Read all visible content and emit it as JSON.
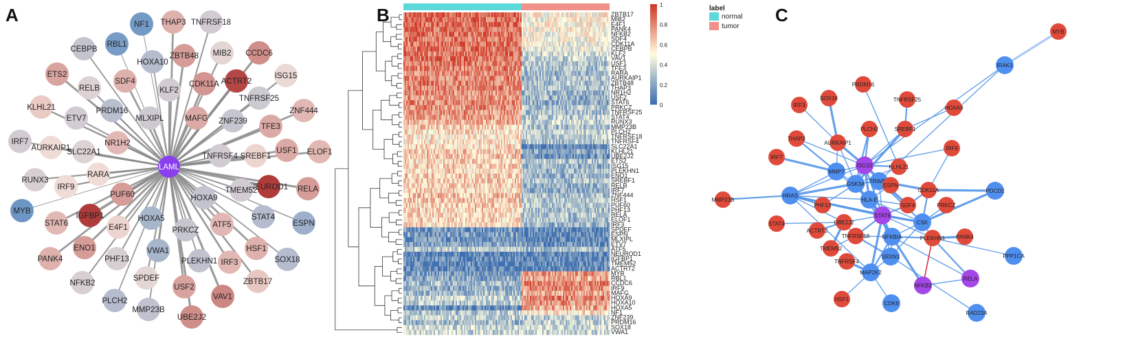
{
  "panels": {
    "a": "A",
    "b": "B",
    "c": "C"
  },
  "colors": {
    "network_a_edge": "#8a8a8a",
    "network_c_edge_blue": "#4a8fe6",
    "network_c_edge_red": "#d83040",
    "node_red": "#e04a3b",
    "node_blue": "#4f8ff0",
    "node_purple": "#a347e6",
    "hub_purple": "#8a3ef0",
    "heat_low": "#3f6fb0",
    "heat_mid": "#fffde0",
    "heat_high": "#d03a2a",
    "normal": "#5dd9dc",
    "tumor": "#f0918a"
  },
  "network_a": {
    "hub": "LAML",
    "scale_low": "#5b8cc2",
    "scale_mid": "#f0dcd6",
    "scale_high": "#a82a2a",
    "nodes": [
      {
        "name": "NF1",
        "v": 0.08
      },
      {
        "name": "THAP3",
        "v": 0.62
      },
      {
        "name": "TNFRSF18",
        "v": 0.4
      },
      {
        "name": "RBL1",
        "v": 0.1
      },
      {
        "name": "CEBPB",
        "v": 0.35
      },
      {
        "name": "HOXA10",
        "v": 0.3
      },
      {
        "name": "ZBTB48",
        "v": 0.68
      },
      {
        "name": "MIB2",
        "v": 0.46
      },
      {
        "name": "CCDC6",
        "v": 0.72
      },
      {
        "name": "SDF4",
        "v": 0.62
      },
      {
        "name": "CDK11A",
        "v": 0.7
      },
      {
        "name": "ACTRT2",
        "v": 0.92
      },
      {
        "name": "ISG15",
        "v": 0.48
      },
      {
        "name": "ETS2",
        "v": 0.66
      },
      {
        "name": "RELB",
        "v": 0.44
      },
      {
        "name": "KLF2",
        "v": 0.4
      },
      {
        "name": "TNFRSF25",
        "v": 0.38
      },
      {
        "name": "KLHL21",
        "v": 0.55
      },
      {
        "name": "PRDM16",
        "v": 0.32
      },
      {
        "name": "MLXIPL",
        "v": 0.38
      },
      {
        "name": "MAFG",
        "v": 0.64
      },
      {
        "name": "ZNF444",
        "v": 0.6
      },
      {
        "name": "ETV7",
        "v": 0.4
      },
      {
        "name": "ZNF239",
        "v": 0.36
      },
      {
        "name": "TFE3",
        "v": 0.64
      },
      {
        "name": "IRF7",
        "v": 0.4
      },
      {
        "name": "AURKAIP1",
        "v": 0.5
      },
      {
        "name": "NR1H2",
        "v": 0.6
      },
      {
        "name": "SLC22A1",
        "v": 0.44
      },
      {
        "name": "USF1",
        "v": 0.64
      },
      {
        "name": "ELOF1",
        "v": 0.6
      },
      {
        "name": "TNFRSF4",
        "v": 0.4
      },
      {
        "name": "SREBF1",
        "v": 0.52
      },
      {
        "name": "RUNX3",
        "v": 0.42
      },
      {
        "name": "RARA",
        "v": 0.5
      },
      {
        "name": "NEUROD1",
        "v": 0.95
      },
      {
        "name": "RELA",
        "v": 0.68
      },
      {
        "name": "IRF9",
        "v": 0.5
      },
      {
        "name": "TMEM52",
        "v": 0.4
      },
      {
        "name": "HOXA9",
        "v": 0.35
      },
      {
        "name": "PUF60",
        "v": 0.68
      },
      {
        "name": "MYB",
        "v": 0.06
      },
      {
        "name": "IGFBP1",
        "v": 0.95
      },
      {
        "name": "STAT6",
        "v": 0.6
      },
      {
        "name": "STAT4",
        "v": 0.3
      },
      {
        "name": "ESPN",
        "v": 0.22
      },
      {
        "name": "HOXA5",
        "v": 0.26
      },
      {
        "name": "ATF5",
        "v": 0.6
      },
      {
        "name": "E4F1",
        "v": 0.52
      },
      {
        "name": "PRKCZ",
        "v": 0.36
      },
      {
        "name": "ENO1",
        "v": 0.68
      },
      {
        "name": "VWA1",
        "v": 0.26
      },
      {
        "name": "HSF1",
        "v": 0.62
      },
      {
        "name": "SOX18",
        "v": 0.3
      },
      {
        "name": "PANK4",
        "v": 0.62
      },
      {
        "name": "PHF13",
        "v": 0.42
      },
      {
        "name": "PLEKHN1",
        "v": 0.34
      },
      {
        "name": "IRF3",
        "v": 0.6
      },
      {
        "name": "ZBTB17",
        "v": 0.56
      },
      {
        "name": "NFKB2",
        "v": 0.42
      },
      {
        "name": "SPDEF",
        "v": 0.46
      },
      {
        "name": "USF2",
        "v": 0.66
      },
      {
        "name": "VAV1",
        "v": 0.74
      },
      {
        "name": "PLCH2",
        "v": 0.3
      },
      {
        "name": "MMP23B",
        "v": 0.34
      },
      {
        "name": "UBE2J2",
        "v": 0.72
      }
    ]
  },
  "heatmap": {
    "legend_title": "label",
    "groups": [
      "normal",
      "tumor"
    ],
    "colorbar_ticks": [
      "1",
      "0.8",
      "0.6",
      "0.4",
      "0.2",
      "0"
    ],
    "rows": [
      "ZBTB17",
      "MIB2",
      "E4F1",
      "PANK4",
      "NFKB2",
      "SDF4",
      "CDK11A",
      "CEBPB",
      "KLF2",
      "VAV1",
      "USF1",
      "TFE3",
      "RARA",
      "AURKAIP1",
      "ZBTB48",
      "THAP3",
      "NR1H2",
      "USF2",
      "STAT6",
      "PRKCZ",
      "TNFRSF25",
      "STAT4",
      "RUNX3",
      "MMP23B",
      "PLCH2",
      "TNFRSF18",
      "TNFRSF4",
      "SLC22A1",
      "KLHL21",
      "UBE2J2",
      "ETS2",
      "ISG15",
      "PLEKHN1",
      "ENO1",
      "SREBF1",
      "RELB",
      "IRF7",
      "ZNF444",
      "HSF1",
      "PUF60",
      "PHF13",
      "RELA",
      "ELOF1",
      "IRF3",
      "SPDEF",
      "ESPN",
      "MLXIPL",
      "ETV7",
      "ATF5",
      "NEUROD1",
      "IGFBP1",
      "TMEM52",
      "ACTRT2",
      "MYB",
      "RBL1",
      "CCDC6",
      "IRF9",
      "MAFG",
      "HOXA9",
      "HOXA10",
      "HOXA5",
      "NF1",
      "ZNF239",
      "PRDM16",
      "SOX18",
      "VWA1"
    ],
    "normal_levels": [
      0.88,
      0.86,
      0.87,
      0.85,
      0.86,
      0.84,
      0.86,
      0.85,
      0.84,
      0.86,
      0.82,
      0.8,
      0.78,
      0.8,
      0.82,
      0.8,
      0.78,
      0.76,
      0.8,
      0.78,
      0.77,
      0.76,
      0.7,
      0.62,
      0.58,
      0.55,
      0.55,
      0.6,
      0.62,
      0.64,
      0.6,
      0.62,
      0.6,
      0.64,
      0.62,
      0.6,
      0.6,
      0.66,
      0.64,
      0.62,
      0.62,
      0.6,
      0.62,
      0.58,
      0.14,
      0.16,
      0.14,
      0.2,
      0.32,
      0.06,
      0.1,
      0.08,
      0.08,
      0.18,
      0.2,
      0.28,
      0.22,
      0.26,
      0.36,
      0.32,
      0.08,
      0.3,
      0.34,
      0.26,
      0.36,
      0.36
    ],
    "tumor_levels": [
      0.52,
      0.5,
      0.52,
      0.5,
      0.48,
      0.5,
      0.46,
      0.44,
      0.4,
      0.34,
      0.28,
      0.3,
      0.26,
      0.28,
      0.3,
      0.28,
      0.26,
      0.24,
      0.22,
      0.3,
      0.28,
      0.32,
      0.34,
      0.28,
      0.36,
      0.34,
      0.3,
      0.06,
      0.2,
      0.12,
      0.3,
      0.24,
      0.26,
      0.24,
      0.28,
      0.22,
      0.22,
      0.3,
      0.32,
      0.3,
      0.28,
      0.3,
      0.28,
      0.24,
      0.1,
      0.1,
      0.08,
      0.12,
      0.28,
      0.06,
      0.08,
      0.1,
      0.08,
      0.76,
      0.72,
      0.82,
      0.78,
      0.7,
      0.8,
      0.78,
      0.72,
      0.56,
      0.32,
      0.34,
      0.38,
      0.36
    ]
  },
  "network_c": {
    "nodes": [
      {
        "name": "MYB",
        "t": "red"
      },
      {
        "name": "IRAK1",
        "t": "blue"
      },
      {
        "name": "PRDM16",
        "t": "red"
      },
      {
        "name": "IRF3",
        "t": "red"
      },
      {
        "name": "SOX18",
        "t": "red"
      },
      {
        "name": "TNFRSF25",
        "t": "red"
      },
      {
        "name": "HOXA9",
        "t": "red"
      },
      {
        "name": "THAP3",
        "t": "red"
      },
      {
        "name": "AURKAIP1",
        "t": "red"
      },
      {
        "name": "PLCH2",
        "t": "red"
      },
      {
        "name": "SREBF1",
        "t": "red"
      },
      {
        "name": "IRF7",
        "t": "red"
      },
      {
        "name": "ISG15",
        "t": "purple"
      },
      {
        "name": "IRF9",
        "t": "red"
      },
      {
        "name": "MMP7",
        "t": "blue"
      },
      {
        "name": "KLHL21",
        "t": "red"
      },
      {
        "name": "GSK3A",
        "t": "blue"
      },
      {
        "name": "TRIM55",
        "t": "blue"
      },
      {
        "name": "ESPN",
        "t": "red"
      },
      {
        "name": "CDK11A",
        "t": "red"
      },
      {
        "name": "MMP23B",
        "t": "red"
      },
      {
        "name": "HRAS",
        "t": "blue"
      },
      {
        "name": "HLA-E",
        "t": "blue"
      },
      {
        "name": "SDF4",
        "t": "red"
      },
      {
        "name": "PDCD1",
        "t": "blue"
      },
      {
        "name": "PHF13",
        "t": "red"
      },
      {
        "name": "PRKCZ",
        "t": "red"
      },
      {
        "name": "STAT6",
        "t": "purple"
      },
      {
        "name": "STAT4",
        "t": "red"
      },
      {
        "name": "UBE2J2",
        "t": "red"
      },
      {
        "name": "CSK",
        "t": "blue"
      },
      {
        "name": "ACTRT2",
        "t": "red"
      },
      {
        "name": "PANK4",
        "t": "red"
      },
      {
        "name": "TNFRSF18",
        "t": "red"
      },
      {
        "name": "NFKBIA",
        "t": "blue"
      },
      {
        "name": "PLEKHN1",
        "t": "red"
      },
      {
        "name": "TMEM52",
        "t": "red"
      },
      {
        "name": "SRXN1",
        "t": "blue"
      },
      {
        "name": "PPP1CA",
        "t": "blue"
      },
      {
        "name": "TNFRSF4",
        "t": "red"
      },
      {
        "name": "MAP2K2",
        "t": "blue"
      },
      {
        "name": "RELA",
        "t": "purple"
      },
      {
        "name": "NFKB2",
        "t": "purple"
      },
      {
        "name": "HSF1",
        "t": "red"
      },
      {
        "name": "CDK6",
        "t": "blue"
      },
      {
        "name": "RAD23A",
        "t": "blue"
      }
    ],
    "edges": [
      [
        "MYB",
        "IRAK1"
      ],
      [
        "IRAK1",
        "ISG15"
      ],
      [
        "IRAK1",
        "TRIM55"
      ],
      [
        "ISG15",
        "GSK3A"
      ],
      [
        "ISG15",
        "MMP7"
      ],
      [
        "ISG15",
        "HLA-E"
      ],
      [
        "ISG15",
        "KLHL21"
      ],
      [
        "ISG15",
        "SREBF1"
      ],
      [
        "ISG15",
        "IRF9"
      ],
      [
        "ISG15",
        "PLCH2"
      ],
      [
        "ISG15",
        "AURKAIP1"
      ],
      [
        "ISG15",
        "THAP3"
      ],
      [
        "ISG15",
        "STAT6"
      ],
      [
        "ISG15",
        "TRIM55"
      ],
      [
        "ISG15",
        "HRAS"
      ],
      [
        "ISG15",
        "SDF4"
      ],
      [
        "GSK3A",
        "MMP7"
      ],
      [
        "GSK3A",
        "HLA-E"
      ],
      [
        "GSK3A",
        "TRIM55"
      ],
      [
        "GSK3A",
        "KLHL21"
      ],
      [
        "GSK3A",
        "SREBF1"
      ],
      [
        "GSK3A",
        "PLCH2"
      ],
      [
        "GSK3A",
        "STAT6"
      ],
      [
        "GSK3A",
        "PHF13"
      ],
      [
        "GSK3A",
        "NFKBIA"
      ],
      [
        "GSK3A",
        "HRAS"
      ],
      [
        "GSK3A",
        "AURKAIP1"
      ],
      [
        "HRAS",
        "MMP23B"
      ],
      [
        "HRAS",
        "MMP7"
      ],
      [
        "HRAS",
        "HLA-E"
      ],
      [
        "HRAS",
        "STAT6"
      ],
      [
        "HRAS",
        "MAP2K2"
      ],
      [
        "HRAS",
        "CSK"
      ],
      [
        "HRAS",
        "PHF13"
      ],
      [
        "HRAS",
        "UBE2J2"
      ],
      [
        "MMP7",
        "IRF7"
      ],
      [
        "MMP7",
        "THAP3"
      ],
      [
        "MMP7",
        "AURKAIP1"
      ],
      [
        "MMP7",
        "HLA-E"
      ],
      [
        "TRIM55",
        "ESPN"
      ],
      [
        "TRIM55",
        "CDK11A"
      ],
      [
        "TRIM55",
        "SDF4"
      ],
      [
        "TRIM55",
        "CSK"
      ],
      [
        "TRIM55",
        "STAT6"
      ],
      [
        "TRIM55",
        "HLA-E"
      ],
      [
        "HLA-E",
        "STAT6"
      ],
      [
        "HLA-E",
        "SDF4"
      ],
      [
        "HLA-E",
        "CSK"
      ],
      [
        "HLA-E",
        "NFKBIA"
      ],
      [
        "HLA-E",
        "ESPN"
      ],
      [
        "STAT6",
        "CSK"
      ],
      [
        "STAT6",
        "NFKBIA"
      ],
      [
        "STAT6",
        "SRXN1"
      ],
      [
        "STAT6",
        "UBE2J2"
      ],
      [
        "STAT6",
        "TNFRSF18"
      ],
      [
        "STAT6",
        "MAP2K2"
      ],
      [
        "STAT6",
        "PLEKHN1"
      ],
      [
        "STAT6",
        "SDF4"
      ],
      [
        "CSK",
        "PLEKHN1"
      ],
      [
        "CSK",
        "NFKBIA"
      ],
      [
        "CSK",
        "PDCD1"
      ],
      [
        "CSK",
        "PRKCZ"
      ],
      [
        "CSK",
        "SRXN1"
      ],
      [
        "CSK",
        "CDK11A"
      ],
      [
        "NFKBIA",
        "RELA"
      ],
      [
        "NFKBIA",
        "NFKB2"
      ],
      [
        "NFKBIA",
        "MAP2K2"
      ],
      [
        "NFKBIA",
        "SRXN1"
      ],
      [
        "NFKBIA",
        "TNFRSF18"
      ],
      [
        "NFKBIA",
        "PLEKHN1"
      ],
      [
        "PLEKHN1",
        "PANK4"
      ],
      [
        "PLEKHN1",
        "PPP1CA"
      ],
      [
        "PLEKHN1",
        "RELA"
      ],
      [
        "MAP2K2",
        "CDK6"
      ],
      [
        "MAP2K2",
        "HSF1"
      ],
      [
        "MAP2K2",
        "TNFRSF4"
      ],
      [
        "MAP2K2",
        "SRXN1"
      ],
      [
        "SRXN1",
        "RAD23A"
      ],
      [
        "SRXN1",
        "TNFRSF18"
      ],
      [
        "CDK11A",
        "IRF9"
      ],
      [
        "CDK11A",
        "PDCD1"
      ],
      [
        "SDF4",
        "CDK11A"
      ],
      [
        "TNFRSF18",
        "UBE2J2"
      ],
      [
        "TNFRSF18",
        "TMEM52"
      ],
      [
        "ACTRT2",
        "UBE2J2"
      ],
      [
        "UBE2J2",
        "TMEM52"
      ],
      [
        "HOXA9",
        "SREBF1"
      ],
      [
        "TNFRSF25",
        "SREBF1"
      ],
      [
        "PRDM16",
        "KLHL21"
      ],
      [
        "IRF3",
        "AURKAIP1"
      ],
      [
        "SOX18",
        "AURKAIP1"
      ],
      [
        "NFKB2",
        "RELA"
      ],
      [
        "STAT4",
        "UBE2J2"
      ]
    ],
    "red_edges": [
      [
        "NFKB2",
        "PLEKHN1"
      ]
    ]
  }
}
